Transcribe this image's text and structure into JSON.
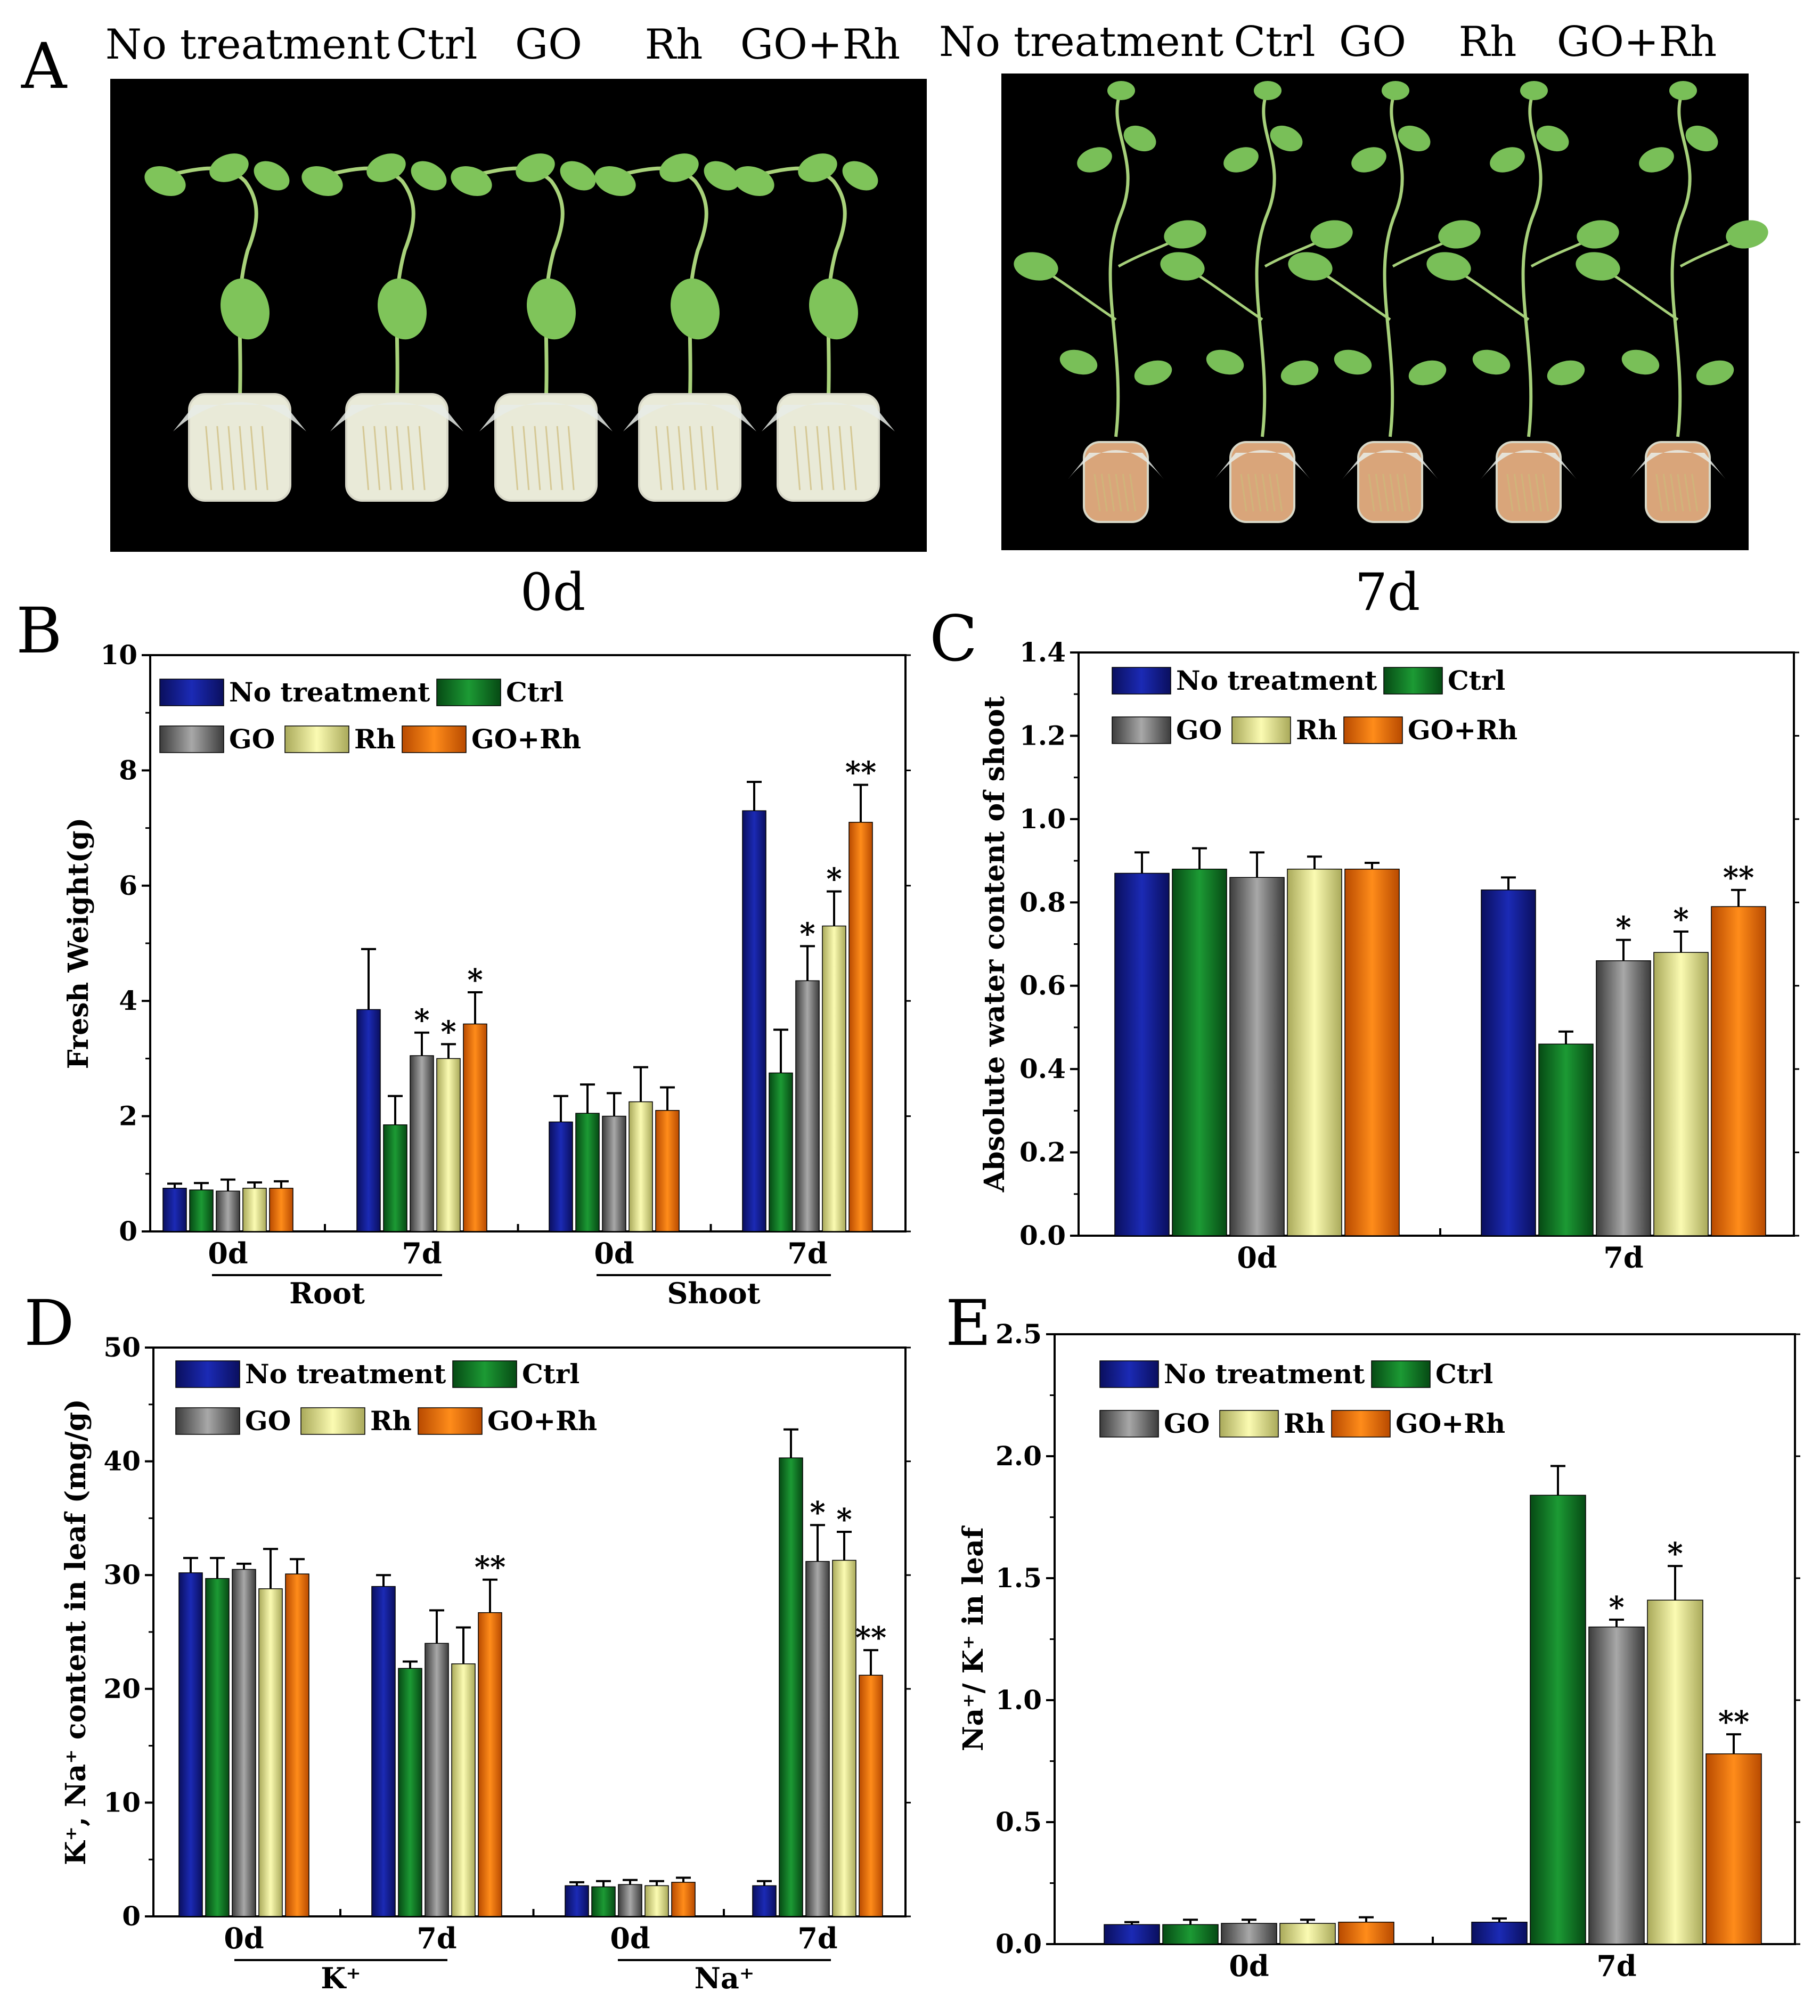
{
  "panel_labels": [
    "A",
    "B",
    "C",
    "D",
    "E"
  ],
  "legend": [
    "No treatment",
    "Ctrl",
    "GO",
    "Rh",
    "GO+Rh"
  ],
  "colors": {
    "No treatment": [
      "#0a0f5e",
      "#1b2ab5",
      "#0a0f5e"
    ],
    "Ctrl": [
      "#064a14",
      "#1c9a34",
      "#064a14"
    ],
    "GO": [
      "#3c3c3c",
      "#a8a8a8",
      "#3c3c3c"
    ],
    "Rh": [
      "#a9a95a",
      "#fbfbb2",
      "#a9a95a"
    ],
    "GO+Rh": [
      "#b84a00",
      "#ff8c1a",
      "#b84a00"
    ]
  },
  "photos": {
    "d0": {
      "labels": [
        "No treatment",
        "Ctrl",
        "GO",
        "Rh",
        "GO+Rh"
      ],
      "caption": "0d"
    },
    "d7": {
      "labels": [
        "No treatment",
        "Ctrl",
        "GO",
        "Rh",
        "GO+Rh"
      ],
      "caption": "7d"
    }
  },
  "chart_data": [
    {
      "id": "B",
      "type": "bar",
      "ylabel": "Fresh Weight(g)",
      "ylim": [
        0,
        10
      ],
      "yticks": [
        0,
        2,
        4,
        6,
        8,
        10
      ],
      "yticklabels": [
        "0",
        "2",
        "4",
        "6",
        "8",
        "10"
      ],
      "categories": [
        "0d",
        "7d",
        "0d",
        "7d"
      ],
      "groups": [
        {
          "label": "Root"
        },
        {
          "label": "Shoot"
        }
      ],
      "series": [
        {
          "name": "No treatment",
          "values": [
            0.75,
            3.85,
            1.9,
            7.3
          ],
          "errors": [
            0.08,
            1.05,
            0.45,
            0.5
          ],
          "sig": [
            "",
            "",
            "",
            ""
          ]
        },
        {
          "name": "Ctrl",
          "values": [
            0.72,
            1.85,
            2.05,
            2.75
          ],
          "errors": [
            0.12,
            0.5,
            0.5,
            0.75
          ],
          "sig": [
            "",
            "",
            "",
            ""
          ]
        },
        {
          "name": "GO",
          "values": [
            0.7,
            3.05,
            2.0,
            4.35
          ],
          "errors": [
            0.2,
            0.4,
            0.4,
            0.6
          ],
          "sig": [
            "",
            "*",
            "",
            "*"
          ]
        },
        {
          "name": "Rh",
          "values": [
            0.75,
            3.0,
            2.25,
            5.3
          ],
          "errors": [
            0.1,
            0.25,
            0.6,
            0.6
          ],
          "sig": [
            "",
            "*",
            "",
            "*"
          ]
        },
        {
          "name": "GO+Rh",
          "values": [
            0.75,
            3.6,
            2.1,
            7.1
          ],
          "errors": [
            0.12,
            0.55,
            0.4,
            0.65
          ],
          "sig": [
            "",
            "*",
            "",
            "**"
          ]
        }
      ]
    },
    {
      "id": "C",
      "type": "bar",
      "ylabel": "Absolute water content of shoot",
      "ylim": [
        0,
        1.4
      ],
      "yticks": [
        0,
        0.2,
        0.4,
        0.6,
        0.8,
        1.0,
        1.2,
        1.4
      ],
      "yticklabels": [
        "0.0",
        "0.2",
        "0.4",
        "0.6",
        "0.8",
        "1.0",
        "1.2",
        "1.4"
      ],
      "categories": [
        "0d",
        "7d"
      ],
      "series": [
        {
          "name": "No treatment",
          "values": [
            0.87,
            0.83
          ],
          "errors": [
            0.05,
            0.03
          ],
          "sig": [
            "",
            ""
          ]
        },
        {
          "name": "Ctrl",
          "values": [
            0.88,
            0.46
          ],
          "errors": [
            0.05,
            0.03
          ],
          "sig": [
            "",
            ""
          ]
        },
        {
          "name": "GO",
          "values": [
            0.86,
            0.66
          ],
          "errors": [
            0.06,
            0.05
          ],
          "sig": [
            "",
            "*"
          ]
        },
        {
          "name": "Rh",
          "values": [
            0.88,
            0.68
          ],
          "errors": [
            0.03,
            0.05
          ],
          "sig": [
            "",
            "*"
          ]
        },
        {
          "name": "GO+Rh",
          "values": [
            0.88,
            0.79
          ],
          "errors": [
            0.015,
            0.04
          ],
          "sig": [
            "",
            "**"
          ]
        }
      ]
    },
    {
      "id": "D",
      "type": "bar",
      "ylabel": "K⁺, Na⁺ content in leaf (mg/g)",
      "ylim": [
        0,
        50
      ],
      "yticks": [
        0,
        10,
        20,
        30,
        40,
        50
      ],
      "yticklabels": [
        "0",
        "10",
        "20",
        "30",
        "40",
        "50"
      ],
      "categories": [
        "0d",
        "7d",
        "0d",
        "7d"
      ],
      "groups": [
        {
          "label": "K⁺"
        },
        {
          "label": "Na⁺"
        }
      ],
      "series": [
        {
          "name": "No treatment",
          "values": [
            30.2,
            29.0,
            2.7,
            2.7
          ],
          "errors": [
            1.3,
            1.0,
            0.3,
            0.4
          ],
          "sig": [
            "",
            "",
            "",
            ""
          ]
        },
        {
          "name": "Ctrl",
          "values": [
            29.7,
            21.8,
            2.6,
            40.3
          ],
          "errors": [
            1.8,
            0.6,
            0.5,
            2.5
          ],
          "sig": [
            "",
            "",
            "",
            ""
          ]
        },
        {
          "name": "GO",
          "values": [
            30.5,
            24.0,
            2.8,
            31.2
          ],
          "errors": [
            0.5,
            2.9,
            0.4,
            3.2
          ],
          "sig": [
            "",
            "",
            "",
            "*"
          ]
        },
        {
          "name": "Rh",
          "values": [
            28.8,
            22.2,
            2.7,
            31.3
          ],
          "errors": [
            3.5,
            3.2,
            0.4,
            2.5
          ],
          "sig": [
            "",
            "",
            "",
            "*"
          ]
        },
        {
          "name": "GO+Rh",
          "values": [
            30.1,
            26.7,
            3.0,
            21.2
          ],
          "errors": [
            1.3,
            2.9,
            0.4,
            2.2
          ],
          "sig": [
            "",
            "**",
            "",
            "**"
          ]
        }
      ]
    },
    {
      "id": "E",
      "type": "bar",
      "ylabel": "Na⁺/ K⁺ in leaf",
      "ylim": [
        0,
        2.5
      ],
      "yticks": [
        0,
        0.5,
        1.0,
        1.5,
        2.0,
        2.5
      ],
      "yticklabels": [
        "0.0",
        "0.5",
        "1.0",
        "1.5",
        "2.0",
        "2.5"
      ],
      "categories": [
        "0d",
        "7d"
      ],
      "series": [
        {
          "name": "No treatment",
          "values": [
            0.08,
            0.09
          ],
          "errors": [
            0.01,
            0.015
          ],
          "sig": [
            "",
            ""
          ]
        },
        {
          "name": "Ctrl",
          "values": [
            0.08,
            1.84
          ],
          "errors": [
            0.02,
            0.12
          ],
          "sig": [
            "",
            ""
          ]
        },
        {
          "name": "GO",
          "values": [
            0.085,
            1.3
          ],
          "errors": [
            0.015,
            0.03
          ],
          "sig": [
            "",
            "*"
          ]
        },
        {
          "name": "Rh",
          "values": [
            0.085,
            1.41
          ],
          "errors": [
            0.015,
            0.14
          ],
          "sig": [
            "",
            "*"
          ]
        },
        {
          "name": "GO+Rh",
          "values": [
            0.09,
            0.78
          ],
          "errors": [
            0.02,
            0.08
          ],
          "sig": [
            "",
            "**"
          ]
        }
      ]
    }
  ]
}
